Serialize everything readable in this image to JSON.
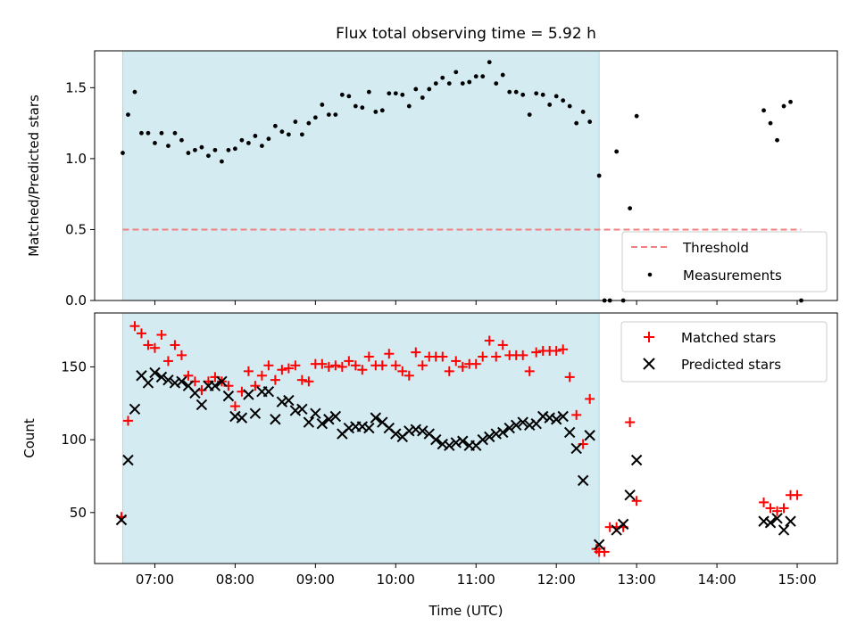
{
  "title": "Flux total observing time = 5.92 h",
  "colors": {
    "shade": "#add8e6",
    "threshold": "#f08080",
    "matched": "#ff0000",
    "predicted": "#000000",
    "measurement": "#000000"
  },
  "chart_data": [
    {
      "type": "scatter",
      "ylabel": "Matched/Predicted stars",
      "xlabel": "",
      "x_range": [
        "06:15",
        "15:30"
      ],
      "ylim": [
        0,
        1.76
      ],
      "yticks": [
        0.0,
        0.5,
        1.0,
        1.5
      ],
      "ytick_labels": [
        "0.0",
        "0.5",
        "1.0",
        "1.5"
      ],
      "shaded_region": [
        "06:36",
        "12:32"
      ],
      "legend": {
        "position": "lower-right",
        "entries": [
          "Threshold",
          "Measurements"
        ]
      },
      "series": [
        {
          "name": "Threshold",
          "kind": "dashed-line",
          "x": [
            "06:36",
            "15:03"
          ],
          "y": [
            0.5,
            0.5
          ]
        },
        {
          "name": "Measurements",
          "kind": "dots",
          "x": [
            "06:36",
            "06:40",
            "06:45",
            "06:50",
            "06:55",
            "07:00",
            "07:05",
            "07:10",
            "07:15",
            "07:20",
            "07:25",
            "07:30",
            "07:35",
            "07:40",
            "07:45",
            "07:50",
            "07:55",
            "08:00",
            "08:05",
            "08:10",
            "08:15",
            "08:20",
            "08:25",
            "08:30",
            "08:35",
            "08:40",
            "08:45",
            "08:50",
            "08:55",
            "09:00",
            "09:05",
            "09:10",
            "09:15",
            "09:20",
            "09:25",
            "09:30",
            "09:35",
            "09:40",
            "09:45",
            "09:50",
            "09:55",
            "10:00",
            "10:05",
            "10:10",
            "10:15",
            "10:20",
            "10:25",
            "10:30",
            "10:35",
            "10:40",
            "10:45",
            "10:50",
            "10:55",
            "11:00",
            "11:05",
            "11:10",
            "11:15",
            "11:20",
            "11:25",
            "11:30",
            "11:35",
            "11:40",
            "11:45",
            "11:50",
            "11:55",
            "12:00",
            "12:05",
            "12:10",
            "12:15",
            "12:20",
            "12:25",
            "12:32",
            "12:36",
            "12:40",
            "12:45",
            "12:50",
            "12:55",
            "13:00",
            "14:35",
            "14:40",
            "14:45",
            "14:50",
            "14:55",
            "15:03"
          ],
          "y": [
            1.04,
            1.31,
            1.47,
            1.18,
            1.18,
            1.11,
            1.18,
            1.09,
            1.18,
            1.13,
            1.04,
            1.06,
            1.08,
            1.02,
            1.06,
            0.98,
            1.06,
            1.07,
            1.13,
            1.11,
            1.16,
            1.09,
            1.14,
            1.23,
            1.19,
            1.17,
            1.26,
            1.17,
            1.25,
            1.29,
            1.38,
            1.31,
            1.31,
            1.45,
            1.44,
            1.37,
            1.36,
            1.47,
            1.33,
            1.34,
            1.46,
            1.46,
            1.45,
            1.37,
            1.49,
            1.43,
            1.49,
            1.53,
            1.57,
            1.53,
            1.61,
            1.53,
            1.54,
            1.58,
            1.58,
            1.68,
            1.53,
            1.59,
            1.47,
            1.47,
            1.45,
            1.31,
            1.46,
            1.45,
            1.38,
            1.44,
            1.41,
            1.37,
            1.25,
            1.33,
            1.26,
            0.88,
            0.0,
            0.0,
            1.05,
            0.0,
            0.65,
            1.3,
            1.34,
            1.25,
            1.13,
            1.37,
            1.4,
            0.0
          ]
        }
      ]
    },
    {
      "type": "scatter",
      "ylabel": "Count",
      "xlabel": "Time (UTC)",
      "x_range": [
        "06:15",
        "15:30"
      ],
      "ylim": [
        15,
        187
      ],
      "yticks": [
        50,
        100,
        150
      ],
      "ytick_labels": [
        "50",
        "100",
        "150"
      ],
      "xtick_labels": [
        "07:00",
        "08:00",
        "09:00",
        "10:00",
        "11:00",
        "12:00",
        "13:00",
        "14:00",
        "15:00"
      ],
      "shaded_region": [
        "06:36",
        "12:32"
      ],
      "legend": {
        "position": "upper-right",
        "entries": [
          "Matched stars",
          "Predicted stars"
        ]
      },
      "series": [
        {
          "name": "Matched stars",
          "marker": "plus",
          "x": [
            "06:35",
            "06:40",
            "06:45",
            "06:50",
            "06:55",
            "07:00",
            "07:05",
            "07:10",
            "07:15",
            "07:20",
            "07:25",
            "07:30",
            "07:35",
            "07:40",
            "07:45",
            "07:50",
            "07:55",
            "08:00",
            "08:05",
            "08:10",
            "08:15",
            "08:20",
            "08:25",
            "08:30",
            "08:35",
            "08:40",
            "08:45",
            "08:50",
            "08:55",
            "09:00",
            "09:05",
            "09:10",
            "09:15",
            "09:20",
            "09:25",
            "09:30",
            "09:35",
            "09:40",
            "09:45",
            "09:50",
            "09:55",
            "10:00",
            "10:05",
            "10:10",
            "10:15",
            "10:20",
            "10:25",
            "10:30",
            "10:35",
            "10:40",
            "10:45",
            "10:50",
            "10:55",
            "11:00",
            "11:05",
            "11:10",
            "11:15",
            "11:20",
            "11:25",
            "11:30",
            "11:35",
            "11:40",
            "11:45",
            "11:50",
            "11:55",
            "12:00",
            "12:05",
            "12:10",
            "12:15",
            "12:20",
            "12:25",
            "12:30",
            "12:32",
            "12:36",
            "12:40",
            "12:45",
            "12:50",
            "12:55",
            "13:00",
            "14:35",
            "14:40",
            "14:45",
            "14:50",
            "14:55",
            "15:00"
          ],
          "y": [
            47,
            113,
            178,
            173,
            165,
            163,
            172,
            154,
            165,
            158,
            144,
            140,
            134,
            140,
            143,
            140,
            137,
            123,
            133,
            147,
            137,
            144,
            151,
            141,
            148,
            149,
            151,
            141,
            140,
            152,
            152,
            150,
            151,
            150,
            154,
            151,
            148,
            157,
            151,
            151,
            159,
            151,
            147,
            144,
            160,
            151,
            157,
            157,
            157,
            147,
            154,
            150,
            152,
            152,
            157,
            168,
            157,
            165,
            158,
            158,
            158,
            147,
            160,
            161,
            161,
            161,
            162,
            143,
            117,
            97,
            128,
            25,
            23,
            23,
            40,
            40,
            40,
            112,
            58,
            57,
            53,
            51,
            53,
            62,
            62
          ]
        },
        {
          "name": "Predicted stars",
          "marker": "x",
          "x": [
            "06:35",
            "06:40",
            "06:45",
            "06:50",
            "06:55",
            "07:00",
            "07:05",
            "07:10",
            "07:15",
            "07:20",
            "07:25",
            "07:30",
            "07:35",
            "07:40",
            "07:45",
            "07:50",
            "07:55",
            "08:00",
            "08:05",
            "08:10",
            "08:15",
            "08:20",
            "08:25",
            "08:30",
            "08:35",
            "08:40",
            "08:45",
            "08:50",
            "08:55",
            "09:00",
            "09:05",
            "09:10",
            "09:15",
            "09:20",
            "09:25",
            "09:30",
            "09:35",
            "09:40",
            "09:45",
            "09:50",
            "09:55",
            "10:00",
            "10:05",
            "10:10",
            "10:15",
            "10:20",
            "10:25",
            "10:30",
            "10:35",
            "10:40",
            "10:45",
            "10:50",
            "10:55",
            "11:00",
            "11:05",
            "11:10",
            "11:15",
            "11:20",
            "11:25",
            "11:30",
            "11:35",
            "11:40",
            "11:45",
            "11:50",
            "11:55",
            "12:00",
            "12:05",
            "12:10",
            "12:15",
            "12:20",
            "12:25",
            "12:32",
            "12:45",
            "12:50",
            "12:55",
            "13:00",
            "14:35",
            "14:40",
            "14:45",
            "14:50",
            "14:55"
          ],
          "y": [
            45,
            86,
            121,
            144,
            139,
            146,
            143,
            141,
            139,
            140,
            137,
            132,
            124,
            137,
            137,
            140,
            130,
            116,
            115,
            131,
            118,
            133,
            133,
            114,
            126,
            127,
            120,
            121,
            112,
            118,
            111,
            114,
            116,
            104,
            108,
            109,
            109,
            108,
            115,
            112,
            108,
            104,
            102,
            106,
            107,
            106,
            104,
            100,
            97,
            96,
            98,
            99,
            96,
            96,
            100,
            102,
            104,
            105,
            108,
            110,
            112,
            110,
            111,
            116,
            115,
            114,
            116,
            105,
            94,
            72,
            103,
            28,
            38,
            42,
            62,
            86,
            44,
            43,
            46,
            38,
            44
          ]
        }
      ]
    }
  ]
}
